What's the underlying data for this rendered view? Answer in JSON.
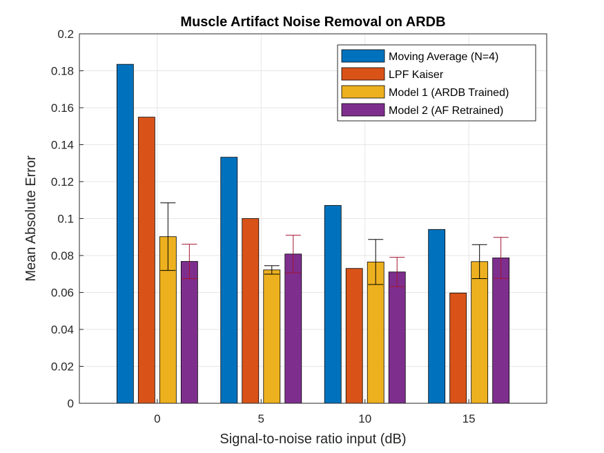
{
  "chart_data": {
    "type": "bar",
    "title": "Muscle Artifact Noise Removal on ARDB",
    "xlabel": "Signal-to-noise ratio input (dB)",
    "ylabel": "Mean Absolute Error",
    "categories": [
      "0",
      "5",
      "10",
      "15"
    ],
    "ylim": [
      0,
      0.2
    ],
    "yticks": [
      "0",
      "0.02",
      "0.04",
      "0.06",
      "0.08",
      "0.1",
      "0.12",
      "0.14",
      "0.16",
      "0.18",
      "0.2"
    ],
    "grid": true,
    "legend_position": "top-right",
    "series": [
      {
        "name": "Moving Average (N=4)",
        "color": "#0072BD",
        "values": [
          0.1835,
          0.1332,
          0.1071,
          0.0941
        ]
      },
      {
        "name": "LPF Kaiser",
        "color": "#D95319",
        "values": [
          0.1549,
          0.1,
          0.073,
          0.0597
        ]
      },
      {
        "name": "Model 1 (ARDB Trained)",
        "color": "#EDB120",
        "values": [
          0.0902,
          0.0722,
          0.0765,
          0.0767
        ],
        "error": [
          0.0183,
          0.0023,
          0.0122,
          0.0092
        ],
        "error_color": "#000000"
      },
      {
        "name": "Model 2 (AF Retrained)",
        "color": "#7E2F8E",
        "values": [
          0.0768,
          0.0808,
          0.0711,
          0.0787
        ],
        "error": [
          0.0093,
          0.0102,
          0.0079,
          0.0111
        ],
        "error_color": "#A2142F"
      }
    ]
  }
}
